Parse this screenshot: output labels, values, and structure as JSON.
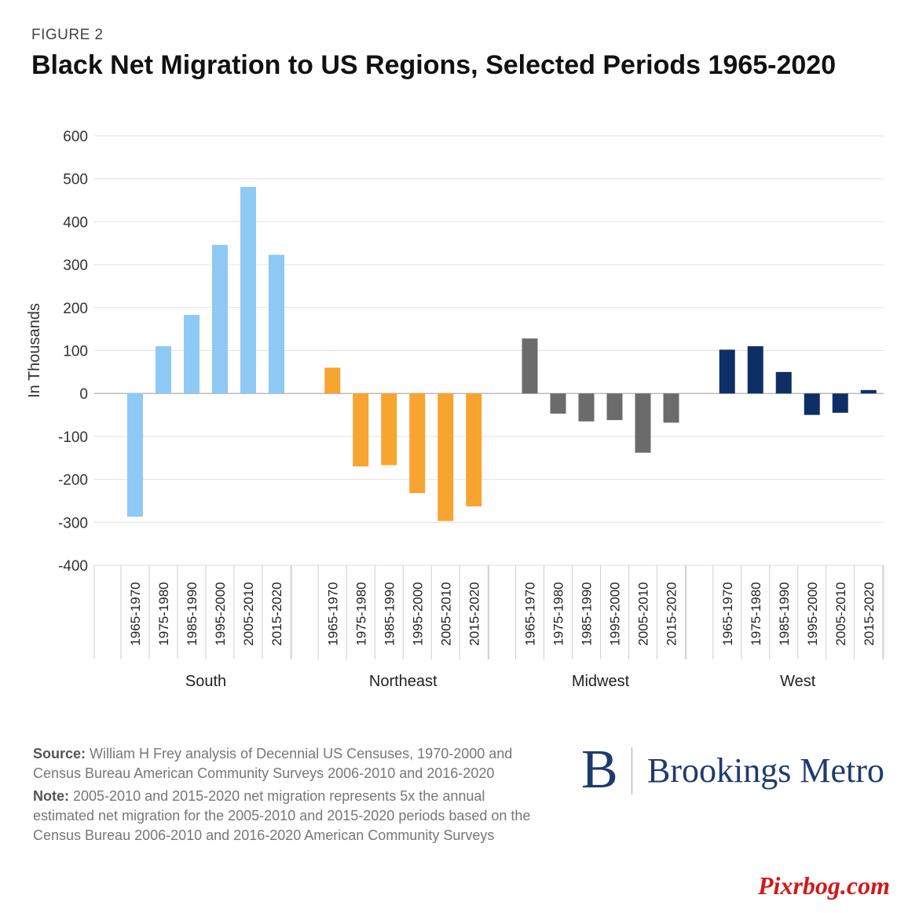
{
  "header": {
    "figure_label": "FIGURE 2",
    "title": "Black Net Migration to US Regions, Selected Periods 1965-2020"
  },
  "chart_data": {
    "type": "bar",
    "ylabel": "In Thousands",
    "ylim": [
      -400,
      600
    ],
    "yticks": [
      600,
      500,
      400,
      300,
      200,
      100,
      0,
      -100,
      -200,
      -300,
      -400
    ],
    "grid": true,
    "periods": [
      "1965-1970",
      "1975-1980",
      "1985-1990",
      "1995-2000",
      "2005-2010",
      "2015-2020"
    ],
    "groups": [
      {
        "name": "South",
        "color": "#8ec9f5",
        "values": [
          -287,
          110,
          183,
          346,
          481,
          323
        ]
      },
      {
        "name": "Northeast",
        "color": "#f7a430",
        "values": [
          60,
          -170,
          -167,
          -232,
          -297,
          -263
        ]
      },
      {
        "name": "Midwest",
        "color": "#6b6b6b",
        "values": [
          128,
          -47,
          -65,
          -62,
          -138,
          -68
        ]
      },
      {
        "name": "West",
        "color": "#0e2f66",
        "values": [
          102,
          110,
          50,
          -50,
          -45,
          8
        ]
      }
    ]
  },
  "notes": {
    "source_label": "Source:",
    "source_text": " William H Frey analysis of Decennial US Censuses, 1970-2000 and Census Bureau American Community Surveys 2006-2010 and 2016-2020",
    "note_label": "Note:",
    "note_text": " 2005-2010 and 2015-2020 net migration represents 5x the annual estimated net migration for the 2005-2010 and 2015-2020 periods based on the Census Bureau 2006-2010 and 2016-2020 American Community Surveys"
  },
  "branding": {
    "logo_letter": "B",
    "logo_text": "Brookings Metro",
    "watermark": "Pixrbog.com"
  }
}
